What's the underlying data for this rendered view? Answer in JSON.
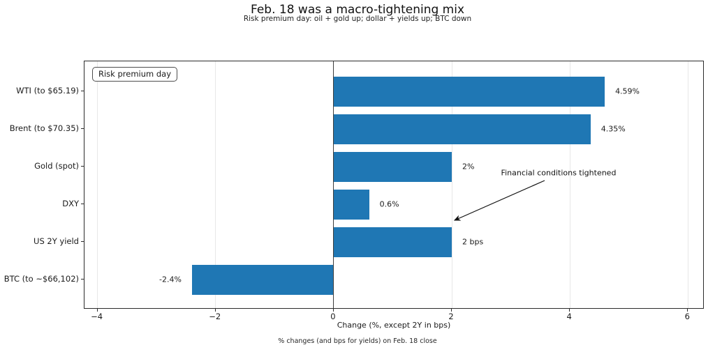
{
  "chart_data": {
    "type": "bar",
    "orientation": "horizontal",
    "title": "Feb. 18 was a macro-tightening mix",
    "subtitle": "Risk premium day: oil + gold up; dollar + yields up; BTC down",
    "categories": [
      "WTI (to $65.19)",
      "Brent (to $70.35)",
      "Gold (spot)",
      "DXY",
      "US 2Y yield",
      "BTC (to ~$66,102)"
    ],
    "values": [
      4.59,
      4.35,
      2,
      0.6,
      2,
      -2.4
    ],
    "bar_labels": [
      "4.59%",
      "4.35%",
      "2%",
      "0.6%",
      "2 bps",
      "-2.4%"
    ],
    "xlabel": "Change (%, except 2Y in bps)",
    "caption": "% changes (and bps for yields) on Feb. 18 close",
    "xlim": [
      -4.22,
      6.28
    ],
    "xticks": [
      -4,
      -2,
      0,
      2,
      4,
      6
    ],
    "xtick_labels": [
      "−4",
      "−2",
      "0",
      "2",
      "4",
      "6"
    ],
    "grid": true,
    "legend": {
      "label": "Risk premium day",
      "position": "upper left"
    },
    "annotation": {
      "text": "Financial conditions tightened",
      "points_to_value": 2,
      "points_to_category": "US 2Y yield"
    },
    "bar_color": "#1f77b4",
    "grid_color": "#e7e7e7",
    "zero_line_color": "#3c3c3c"
  }
}
